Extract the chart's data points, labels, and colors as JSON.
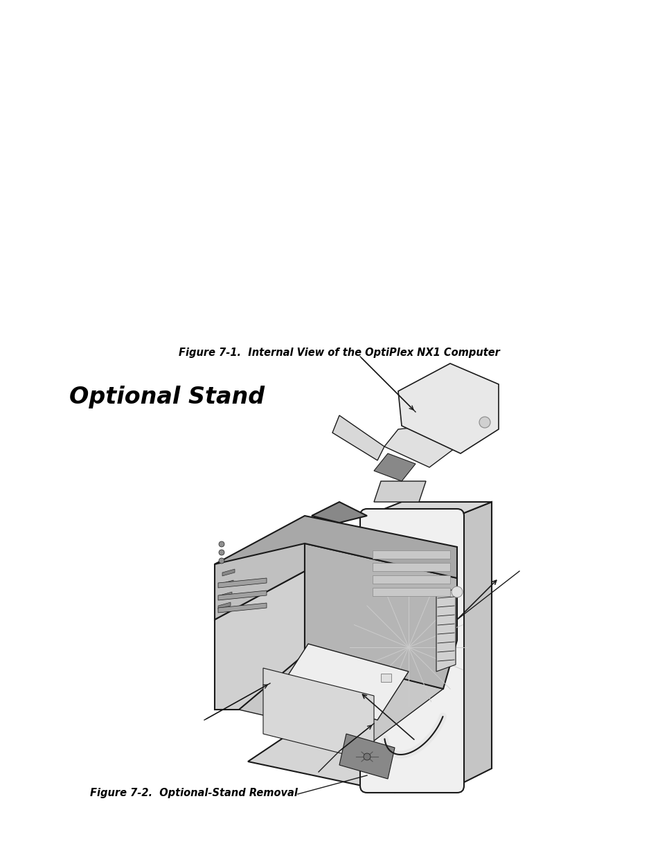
{
  "page_bg": "#ffffff",
  "fig_width": 9.54,
  "fig_height": 12.35,
  "fig1_caption": "Figure 7-1.  Internal View of the OptiPlex NX1 Computer",
  "fig2_caption": "Figure 7-2.  Optional-Stand Removal",
  "section_title": "Optional Stand",
  "caption_fontsize": 10.5,
  "title_fontsize": 24,
  "body_color": "#e8e8e8",
  "dark_color": "#1a1a1a",
  "shadow_color": "#b8b8b8",
  "light_color": "#f5f5f5"
}
